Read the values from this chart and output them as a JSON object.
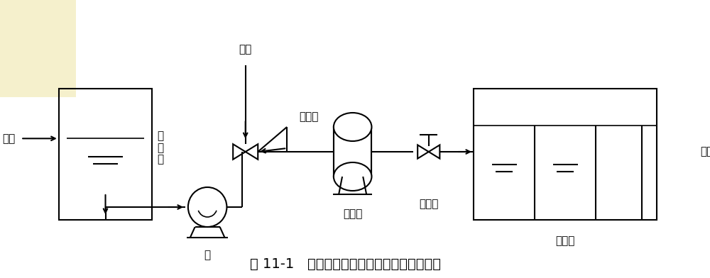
{
  "title": "图 11-1   全部废水加压溶气浮选（泵前加气）",
  "bg_color": "#ffffff",
  "line_color": "#000000",
  "title_fontsize": 14,
  "label_fontsize": 11,
  "fig_width": 10.0,
  "fig_height": 3.92,
  "labels": {
    "inlet": "进水",
    "coagulant": "混\n凝\n剂",
    "air": "空气",
    "ejector": "水射器",
    "pump": "泵",
    "tank": "溶气罐",
    "valve": "减压阀",
    "pool": "浮选池",
    "outlet": "出水"
  }
}
